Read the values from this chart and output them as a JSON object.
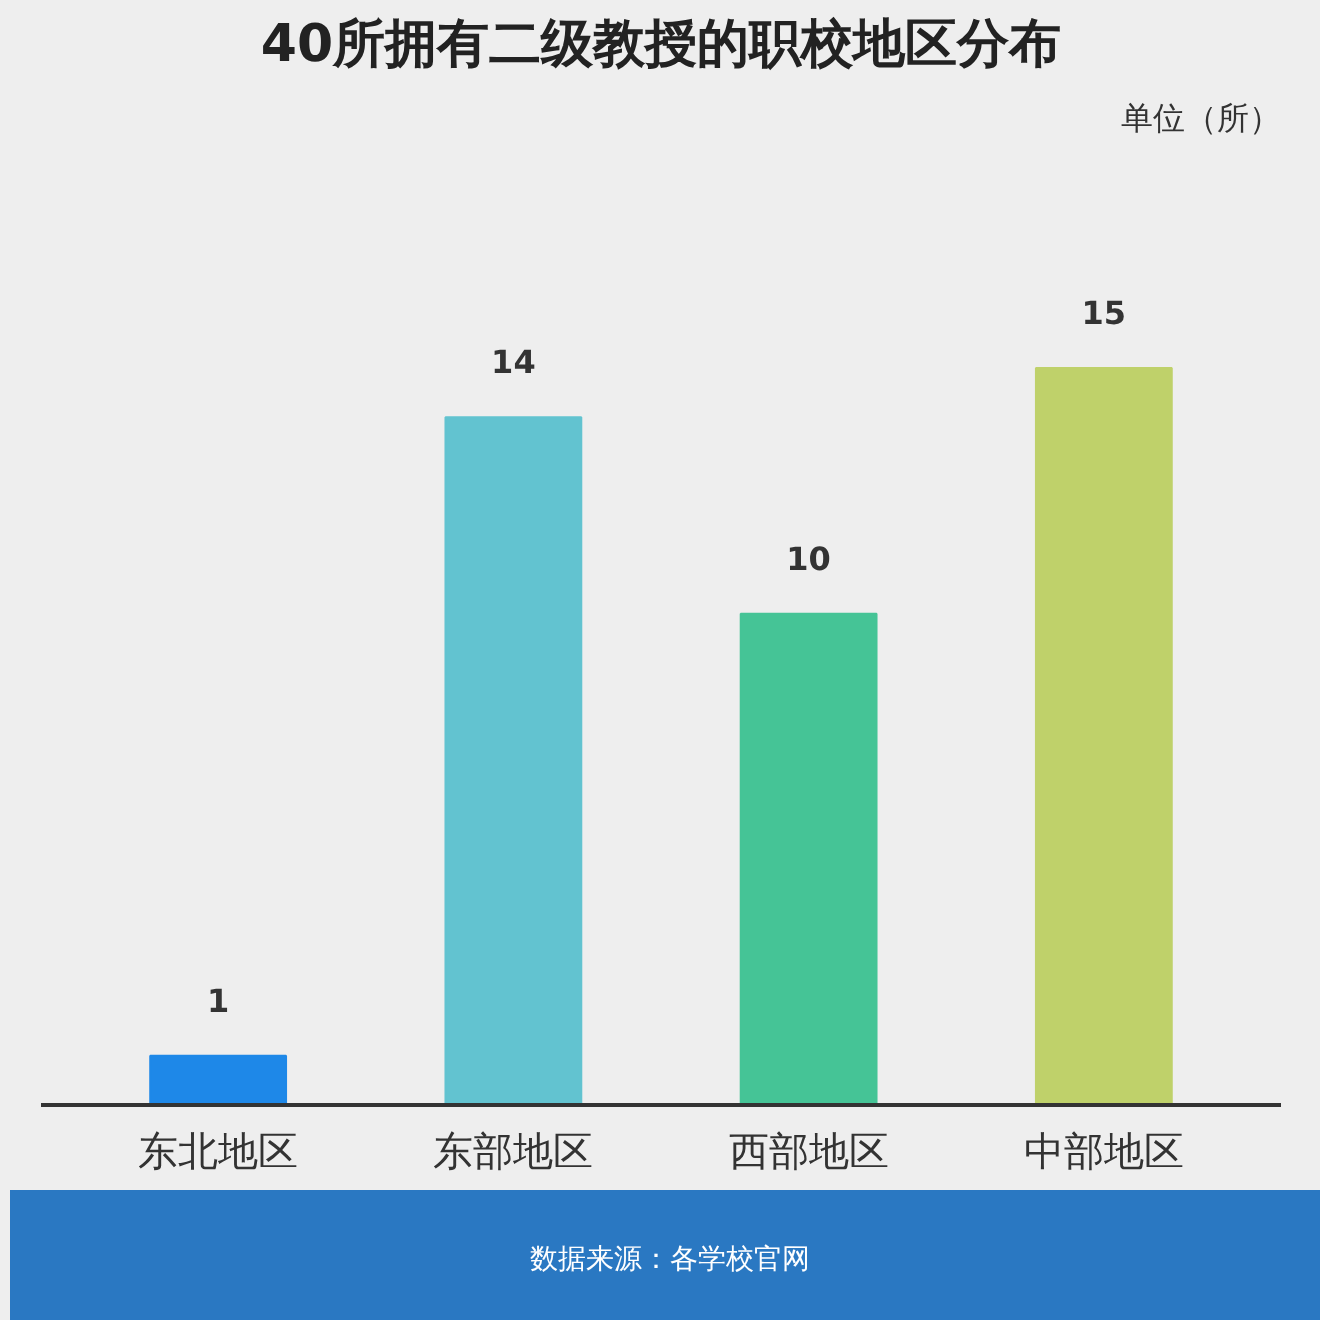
{
  "chart_data": {
    "type": "bar",
    "title": "40所拥有二级教授的职校地区分布",
    "categories": [
      "东北地区",
      "东部地区",
      "西部地区",
      "中部地区"
    ],
    "values": [
      1,
      14,
      10,
      15
    ],
    "colors": [
      "#1e88e8",
      "#62c3d0",
      "#45c496",
      "#bfd16a"
    ],
    "data_labels": true,
    "grid": false,
    "annotations": [
      "单位（所）",
      "数据来源：各学校官网"
    ]
  }
}
